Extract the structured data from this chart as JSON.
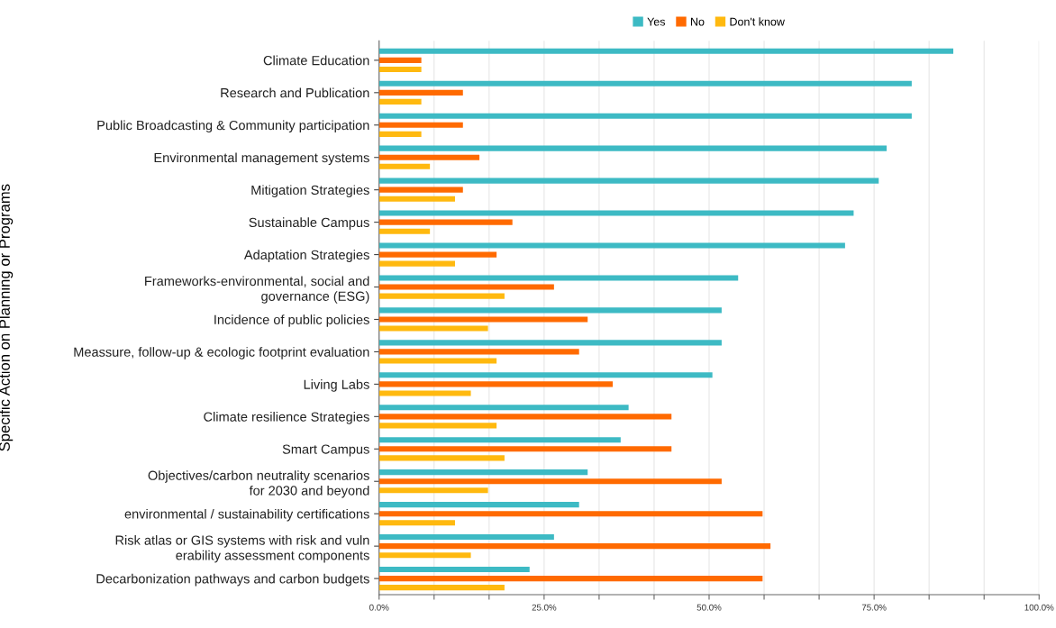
{
  "chart_data": {
    "type": "bar",
    "orientation": "horizontal",
    "ylabel": "Specific Action on Planning or Programs",
    "categories": [
      "Climate Education",
      "Research and Publication",
      "Public Broadcasting & Community participation",
      "Environmental management systems",
      "Mitigation Strategies",
      "Sustainable Campus",
      "Adaptation Strategies",
      "Frameworks-environmental, social and\ngovernance (ESG)",
      "Incidence of public policies",
      "Meassure, follow-up & ecologic footprint evaluation",
      "Living Labs",
      "Climate resilience Strategies",
      "Smart Campus",
      "Objectives/carbon neutrality scenarios\nfor 2030 and beyond",
      "environmental / sustainability certifications",
      "Risk atlas or GIS systems with risk and vuln\nerability assessment components",
      "Decarbonization pathways and carbon budgets"
    ],
    "series": [
      {
        "name": "Yes",
        "color": "#3dbac4",
        "values": [
          87.0,
          80.7,
          80.7,
          76.9,
          75.7,
          71.9,
          70.6,
          54.4,
          51.9,
          51.9,
          50.5,
          37.8,
          36.6,
          31.6,
          30.3,
          26.5,
          22.8
        ]
      },
      {
        "name": "No",
        "color": "#ff6a00",
        "values": [
          6.4,
          12.7,
          12.7,
          15.2,
          12.7,
          20.2,
          17.8,
          26.5,
          31.6,
          30.3,
          35.4,
          44.3,
          44.3,
          51.9,
          58.1,
          59.3,
          58.1
        ]
      },
      {
        "name": "Don't know",
        "color": "#ffb90f",
        "values": [
          6.4,
          6.4,
          6.4,
          7.7,
          11.5,
          7.7,
          11.5,
          19.0,
          16.5,
          17.8,
          13.9,
          17.8,
          19.0,
          16.5,
          11.5,
          13.9,
          19.0
        ]
      }
    ],
    "xlim": [
      0,
      100
    ],
    "xticks": [
      {
        "value": 0,
        "label": "0.0%"
      },
      {
        "value": 8.333,
        "label": null
      },
      {
        "value": 16.667,
        "label": null
      },
      {
        "value": 25,
        "label": "25.0%"
      },
      {
        "value": 33.333,
        "label": null
      },
      {
        "value": 41.667,
        "label": null
      },
      {
        "value": 50,
        "label": "50.0%"
      },
      {
        "value": 58.333,
        "label": null
      },
      {
        "value": 66.667,
        "label": null
      },
      {
        "value": 75,
        "label": "75.0%"
      },
      {
        "value": 83.333,
        "label": null
      },
      {
        "value": 91.667,
        "label": null
      },
      {
        "value": 100,
        "label": "100.0%"
      }
    ],
    "grid": "x",
    "legend": "top"
  }
}
